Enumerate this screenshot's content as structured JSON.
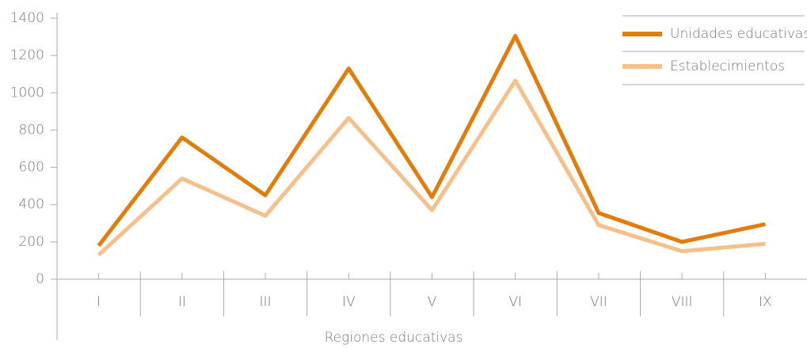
{
  "chart_data": {
    "type": "line",
    "x_label": "Regiones educativas",
    "categories": [
      "I",
      "II",
      "III",
      "IV",
      "V",
      "VI",
      "VII",
      "VIII",
      "IX"
    ],
    "series": [
      {
        "name": "Unidades educativas",
        "color": "#e27d0c",
        "values": [
          180,
          760,
          450,
          1130,
          440,
          1305,
          355,
          200,
          295
        ]
      },
      {
        "name": "Establecimientos",
        "color": "#f5c08a",
        "values": [
          130,
          540,
          340,
          865,
          370,
          1065,
          290,
          150,
          190
        ]
      }
    ],
    "ylim": [
      0,
      1400
    ],
    "yticks": [
      0,
      200,
      400,
      600,
      800,
      1000,
      1200,
      1400
    ],
    "legend": "top-right"
  }
}
